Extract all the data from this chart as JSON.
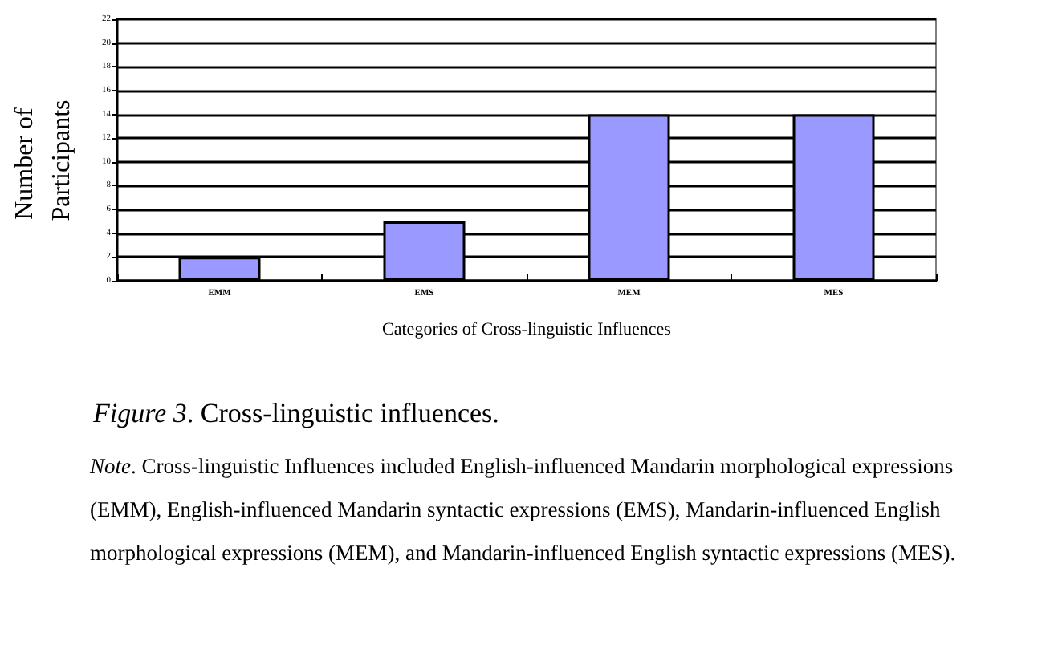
{
  "chart_data": {
    "type": "bar",
    "title": "Figure 3. Cross-linguistic influences.",
    "xlabel": "Categories of Cross-linguistic Influences",
    "ylabel": "Number of Participants",
    "categories": [
      "EMM",
      "EMS",
      "MEM",
      "MES"
    ],
    "values": [
      2,
      5,
      14,
      14
    ],
    "color": "#9999ff",
    "ylim": [
      0,
      22
    ],
    "yticks": [
      0,
      2,
      4,
      6,
      8,
      10,
      12,
      14,
      16,
      18,
      20,
      22
    ],
    "grid": "y",
    "annotations": [
      "Note. Cross-linguistic Influences included English-influenced Mandarin morphological expressions (EMM), English-influenced Mandarin syntactic expressions (EMS), Mandarin-influenced English morphological expressions (MEM), and Mandarin-influenced English syntactic expressions (MES)."
    ]
  }
}
